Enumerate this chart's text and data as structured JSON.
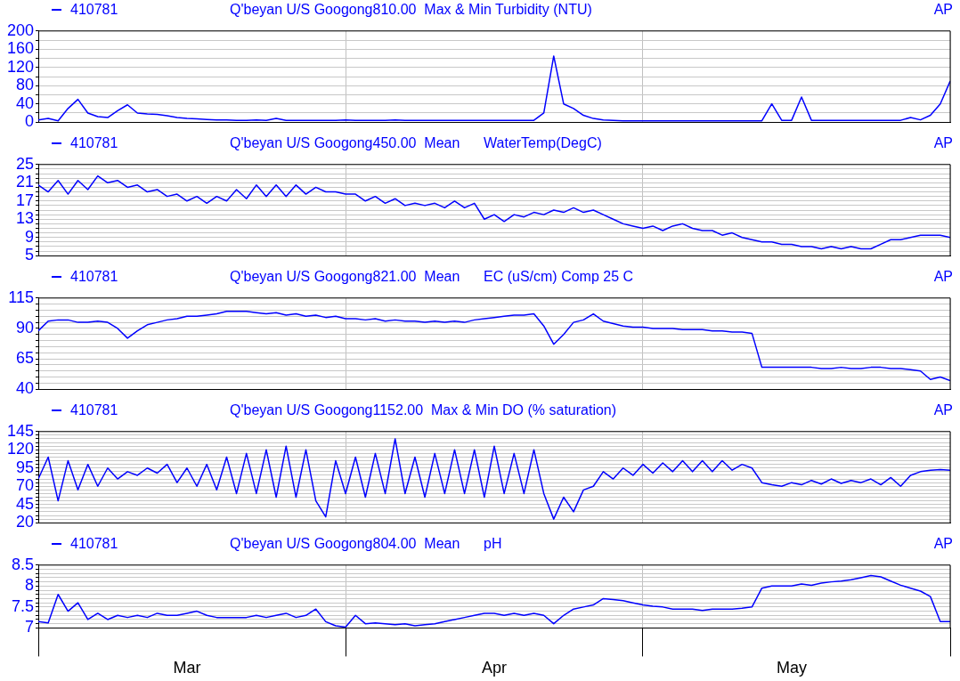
{
  "chart_data": [
    {
      "type": "line",
      "title": "Q'beyan U/S Googong810.00",
      "subtitle": "Max & Min Turbidity (NTU)",
      "annotations": [
        "AP"
      ],
      "legend": "top left",
      "grid": true,
      "tick_labels": "y",
      "x": [
        "--03-01",
        "--03-02",
        "--03-03",
        "--03-04",
        "--03-05",
        "--03-06",
        "--03-07",
        "--03-08",
        "--03-09",
        "--03-10",
        "--03-11",
        "--03-12",
        "--03-13",
        "--03-14",
        "--03-15",
        "--03-16",
        "--03-17",
        "--03-18",
        "--03-19",
        "--03-20",
        "--03-21",
        "--03-22",
        "--03-23",
        "--03-24",
        "--03-25",
        "--03-26",
        "--03-27",
        "--03-28",
        "--03-29",
        "--03-30",
        "--03-31",
        "--04-01",
        "--04-02",
        "--04-03",
        "--04-04",
        "--04-05",
        "--04-06",
        "--04-07",
        "--04-08",
        "--04-09",
        "--04-10",
        "--04-11",
        "--04-12",
        "--04-13",
        "--04-14",
        "--04-15",
        "--04-16",
        "--04-17",
        "--04-18",
        "--04-19",
        "--04-20",
        "--04-21",
        "--04-22",
        "--04-23",
        "--04-24",
        "--04-25",
        "--04-26",
        "--04-27",
        "--04-28",
        "--04-29",
        "--04-30",
        "--05-01",
        "--05-02",
        "--05-03",
        "--05-04",
        "--05-05",
        "--05-06",
        "--05-07",
        "--05-08",
        "--05-09",
        "--05-10",
        "--05-11",
        "--05-12",
        "--05-13",
        "--05-14",
        "--05-15",
        "--05-16",
        "--05-17",
        "--05-18",
        "--05-19",
        "--05-20",
        "--05-21",
        "--05-22",
        "--05-23",
        "--05-24",
        "--05-25",
        "--05-26",
        "--05-27",
        "--05-28",
        "--05-29",
        "--05-30",
        "--05-31",
        "--06-01"
      ],
      "xlim": [
        "--03-01",
        "--06-01"
      ],
      "xticks": [
        {
          "value": "--03-01",
          "label": null
        },
        {
          "value": "--03-16",
          "label": "Mar"
        },
        {
          "value": "--04-01",
          "label": null
        },
        {
          "value": "--04-16",
          "label": "Apr"
        },
        {
          "value": "--05-01",
          "label": null
        },
        {
          "value": "--05-16",
          "label": "May"
        },
        {
          "value": "--06-01",
          "label": null
        }
      ],
      "ylim": [
        0,
        200
      ],
      "yticks": [
        0,
        {
          "value": 20,
          "label": null
        },
        40,
        {
          "value": 60,
          "label": null
        },
        80,
        {
          "value": 100,
          "label": null
        },
        120,
        {
          "value": 140,
          "label": null
        },
        160,
        {
          "value": 180,
          "label": null
        },
        200
      ],
      "series": [
        {
          "name": "410781",
          "color": "#0000ff",
          "values": [
            5,
            8,
            3,
            30,
            50,
            20,
            12,
            10,
            25,
            38,
            20,
            18,
            17,
            14,
            10,
            8,
            7,
            6,
            5,
            5,
            4,
            4,
            5,
            4,
            8,
            4,
            4,
            4,
            4,
            4,
            4,
            5,
            4,
            4,
            4,
            4,
            5,
            4,
            4,
            4,
            4,
            4,
            4,
            4,
            4,
            4,
            4,
            4,
            4,
            4,
            4,
            20,
            145,
            40,
            30,
            15,
            8,
            5,
            4,
            3,
            3,
            3,
            3,
            3,
            3,
            3,
            3,
            3,
            3,
            3,
            3,
            3,
            3,
            3,
            40,
            4,
            4,
            55,
            4,
            4,
            4,
            4,
            4,
            4,
            4,
            4,
            4,
            4,
            10,
            5,
            15,
            40,
            90
          ]
        }
      ]
    },
    {
      "type": "line",
      "title": "Q'beyan U/S Googong450.00",
      "subtitle": "Mean      WaterTemp(DegC)",
      "annotations": [
        "AP"
      ],
      "legend": "top left",
      "grid": true,
      "tick_labels": "y",
      "x": [
        "--03-01",
        "--03-02",
        "--03-03",
        "--03-04",
        "--03-05",
        "--03-06",
        "--03-07",
        "--03-08",
        "--03-09",
        "--03-10",
        "--03-11",
        "--03-12",
        "--03-13",
        "--03-14",
        "--03-15",
        "--03-16",
        "--03-17",
        "--03-18",
        "--03-19",
        "--03-20",
        "--03-21",
        "--03-22",
        "--03-23",
        "--03-24",
        "--03-25",
        "--03-26",
        "--03-27",
        "--03-28",
        "--03-29",
        "--03-30",
        "--03-31",
        "--04-01",
        "--04-02",
        "--04-03",
        "--04-04",
        "--04-05",
        "--04-06",
        "--04-07",
        "--04-08",
        "--04-09",
        "--04-10",
        "--04-11",
        "--04-12",
        "--04-13",
        "--04-14",
        "--04-15",
        "--04-16",
        "--04-17",
        "--04-18",
        "--04-19",
        "--04-20",
        "--04-21",
        "--04-22",
        "--04-23",
        "--04-24",
        "--04-25",
        "--04-26",
        "--04-27",
        "--04-28",
        "--04-29",
        "--04-30",
        "--05-01",
        "--05-02",
        "--05-03",
        "--05-04",
        "--05-05",
        "--05-06",
        "--05-07",
        "--05-08",
        "--05-09",
        "--05-10",
        "--05-11",
        "--05-12",
        "--05-13",
        "--05-14",
        "--05-15",
        "--05-16",
        "--05-17",
        "--05-18",
        "--05-19",
        "--05-20",
        "--05-21",
        "--05-22",
        "--05-23",
        "--05-24",
        "--05-25",
        "--05-26",
        "--05-27",
        "--05-28",
        "--05-29",
        "--05-30",
        "--05-31",
        "--06-01"
      ],
      "xlim": [
        "--03-01",
        "--06-01"
      ],
      "xticks": [
        {
          "value": "--03-01",
          "label": null
        },
        {
          "value": "--03-16",
          "label": "Mar"
        },
        {
          "value": "--04-01",
          "label": null
        },
        {
          "value": "--04-16",
          "label": "Apr"
        },
        {
          "value": "--05-01",
          "label": null
        },
        {
          "value": "--05-16",
          "label": "May"
        },
        {
          "value": "--06-01",
          "label": null
        }
      ],
      "ylim": [
        5,
        25
      ],
      "yticks": [
        5,
        {
          "value": 6,
          "label": null
        },
        {
          "value": 7,
          "label": null
        },
        {
          "value": 8,
          "label": null
        },
        9,
        {
          "value": 10,
          "label": null
        },
        {
          "value": 11,
          "label": null
        },
        {
          "value": 12,
          "label": null
        },
        13,
        {
          "value": 14,
          "label": null
        },
        {
          "value": 15,
          "label": null
        },
        {
          "value": 16,
          "label": null
        },
        17,
        {
          "value": 18,
          "label": null
        },
        {
          "value": 19,
          "label": null
        },
        {
          "value": 20,
          "label": null
        },
        21,
        {
          "value": 22,
          "label": null
        },
        {
          "value": 23,
          "label": null
        },
        {
          "value": 24,
          "label": null
        },
        25
      ],
      "series": [
        {
          "name": "410781",
          "color": "#0000ff",
          "values": [
            20.5,
            19,
            21.5,
            18.5,
            21.5,
            19.5,
            22.5,
            21,
            21.5,
            20,
            20.5,
            19,
            19.5,
            18,
            18.5,
            17,
            18,
            16.5,
            18,
            17,
            19.5,
            17.5,
            20.5,
            18,
            20.5,
            18,
            20.5,
            18.5,
            20,
            19,
            19,
            18.5,
            18.5,
            17,
            18,
            16.5,
            17.5,
            16,
            16.5,
            16,
            16.5,
            15.5,
            17,
            15.5,
            16.5,
            13,
            14,
            12.5,
            14,
            13.5,
            14.5,
            14,
            15,
            14.5,
            15.5,
            14.5,
            15,
            14,
            13,
            12,
            11.5,
            11,
            11.5,
            10.5,
            11.5,
            12,
            11,
            10.5,
            10.5,
            9.5,
            10,
            9,
            8.5,
            8,
            8,
            7.5,
            7.5,
            7,
            7,
            6.5,
            7,
            6.5,
            7,
            6.5,
            6.5,
            7.5,
            8.5,
            8.5,
            9,
            9.5,
            9.5,
            9.5,
            9
          ]
        }
      ]
    },
    {
      "type": "line",
      "title": "Q'beyan U/S Googong821.00",
      "subtitle": "Mean      EC (uS/cm) Comp 25 C",
      "annotations": [
        "AP"
      ],
      "legend": "top left",
      "grid": true,
      "tick_labels": "y",
      "x": [
        "--03-01",
        "--03-02",
        "--03-03",
        "--03-04",
        "--03-05",
        "--03-06",
        "--03-07",
        "--03-08",
        "--03-09",
        "--03-10",
        "--03-11",
        "--03-12",
        "--03-13",
        "--03-14",
        "--03-15",
        "--03-16",
        "--03-17",
        "--03-18",
        "--03-19",
        "--03-20",
        "--03-21",
        "--03-22",
        "--03-23",
        "--03-24",
        "--03-25",
        "--03-26",
        "--03-27",
        "--03-28",
        "--03-29",
        "--03-30",
        "--03-31",
        "--04-01",
        "--04-02",
        "--04-03",
        "--04-04",
        "--04-05",
        "--04-06",
        "--04-07",
        "--04-08",
        "--04-09",
        "--04-10",
        "--04-11",
        "--04-12",
        "--04-13",
        "--04-14",
        "--04-15",
        "--04-16",
        "--04-17",
        "--04-18",
        "--04-19",
        "--04-20",
        "--04-21",
        "--04-22",
        "--04-23",
        "--04-24",
        "--04-25",
        "--04-26",
        "--04-27",
        "--04-28",
        "--04-29",
        "--04-30",
        "--05-01",
        "--05-02",
        "--05-03",
        "--05-04",
        "--05-05",
        "--05-06",
        "--05-07",
        "--05-08",
        "--05-09",
        "--05-10",
        "--05-11",
        "--05-12",
        "--05-13",
        "--05-14",
        "--05-15",
        "--05-16",
        "--05-17",
        "--05-18",
        "--05-19",
        "--05-20",
        "--05-21",
        "--05-22",
        "--05-23",
        "--05-24",
        "--05-25",
        "--05-26",
        "--05-27",
        "--05-28",
        "--05-29",
        "--05-30",
        "--05-31",
        "--06-01"
      ],
      "xlim": [
        "--03-01",
        "--06-01"
      ],
      "xticks": [
        {
          "value": "--03-01",
          "label": null
        },
        {
          "value": "--03-16",
          "label": "Mar"
        },
        {
          "value": "--04-01",
          "label": null
        },
        {
          "value": "--04-16",
          "label": "Apr"
        },
        {
          "value": "--05-01",
          "label": null
        },
        {
          "value": "--05-16",
          "label": "May"
        },
        {
          "value": "--06-01",
          "label": null
        }
      ],
      "ylim": [
        40,
        115
      ],
      "yticks": [
        40,
        {
          "value": 45,
          "label": null
        },
        {
          "value": 50,
          "label": null
        },
        {
          "value": 55,
          "label": null
        },
        {
          "value": 60,
          "label": null
        },
        65,
        {
          "value": 70,
          "label": null
        },
        {
          "value": 75,
          "label": null
        },
        {
          "value": 80,
          "label": null
        },
        {
          "value": 85,
          "label": null
        },
        90,
        {
          "value": 95,
          "label": null
        },
        {
          "value": 100,
          "label": null
        },
        {
          "value": 105,
          "label": null
        },
        {
          "value": 110,
          "label": null
        },
        115
      ],
      "series": [
        {
          "name": "410781",
          "color": "#0000ff",
          "values": [
            88,
            96,
            97,
            97,
            95,
            95,
            96,
            95,
            90,
            82,
            88,
            93,
            95,
            97,
            98,
            100,
            100,
            101,
            102,
            104,
            104,
            104,
            103,
            102,
            103,
            101,
            102,
            100,
            101,
            99,
            100,
            98,
            98,
            97,
            98,
            96,
            97,
            96,
            96,
            95,
            96,
            95,
            96,
            95,
            97,
            98,
            99,
            100,
            101,
            101,
            102,
            92,
            77,
            85,
            95,
            97,
            102,
            96,
            94,
            92,
            91,
            91,
            90,
            90,
            90,
            89,
            89,
            89,
            88,
            88,
            87,
            87,
            86,
            58,
            58,
            58,
            58,
            58,
            58,
            57,
            57,
            58,
            57,
            57,
            58,
            58,
            57,
            57,
            56,
            55,
            48,
            50,
            47
          ]
        }
      ]
    },
    {
      "type": "line",
      "title": "Q'beyan U/S Googong1152.00",
      "subtitle": "Max & Min DO (% saturation)",
      "annotations": [
        "AP"
      ],
      "legend": "top left",
      "grid": true,
      "tick_labels": "y",
      "x": [
        "--03-01",
        "--03-02",
        "--03-03",
        "--03-04",
        "--03-05",
        "--03-06",
        "--03-07",
        "--03-08",
        "--03-09",
        "--03-10",
        "--03-11",
        "--03-12",
        "--03-13",
        "--03-14",
        "--03-15",
        "--03-16",
        "--03-17",
        "--03-18",
        "--03-19",
        "--03-20",
        "--03-21",
        "--03-22",
        "--03-23",
        "--03-24",
        "--03-25",
        "--03-26",
        "--03-27",
        "--03-28",
        "--03-29",
        "--03-30",
        "--03-31",
        "--04-01",
        "--04-02",
        "--04-03",
        "--04-04",
        "--04-05",
        "--04-06",
        "--04-07",
        "--04-08",
        "--04-09",
        "--04-10",
        "--04-11",
        "--04-12",
        "--04-13",
        "--04-14",
        "--04-15",
        "--04-16",
        "--04-17",
        "--04-18",
        "--04-19",
        "--04-20",
        "--04-21",
        "--04-22",
        "--04-23",
        "--04-24",
        "--04-25",
        "--04-26",
        "--04-27",
        "--04-28",
        "--04-29",
        "--04-30",
        "--05-01",
        "--05-02",
        "--05-03",
        "--05-04",
        "--05-05",
        "--05-06",
        "--05-07",
        "--05-08",
        "--05-09",
        "--05-10",
        "--05-11",
        "--05-12",
        "--05-13",
        "--05-14",
        "--05-15",
        "--05-16",
        "--05-17",
        "--05-18",
        "--05-19",
        "--05-20",
        "--05-21",
        "--05-22",
        "--05-23",
        "--05-24",
        "--05-25",
        "--05-26",
        "--05-27",
        "--05-28",
        "--05-29",
        "--05-30",
        "--05-31",
        "--06-01"
      ],
      "xlim": [
        "--03-01",
        "--06-01"
      ],
      "xticks": [
        {
          "value": "--03-01",
          "label": null
        },
        {
          "value": "--03-16",
          "label": "Mar"
        },
        {
          "value": "--04-01",
          "label": null
        },
        {
          "value": "--04-16",
          "label": "Apr"
        },
        {
          "value": "--05-01",
          "label": null
        },
        {
          "value": "--05-16",
          "label": "May"
        },
        {
          "value": "--06-01",
          "label": null
        }
      ],
      "ylim": [
        20,
        145
      ],
      "yticks": [
        20,
        {
          "value": 25,
          "label": null
        },
        {
          "value": 30,
          "label": null
        },
        {
          "value": 35,
          "label": null
        },
        {
          "value": 40,
          "label": null
        },
        45,
        {
          "value": 50,
          "label": null
        },
        {
          "value": 55,
          "label": null
        },
        {
          "value": 60,
          "label": null
        },
        {
          "value": 65,
          "label": null
        },
        70,
        {
          "value": 75,
          "label": null
        },
        {
          "value": 80,
          "label": null
        },
        {
          "value": 85,
          "label": null
        },
        {
          "value": 90,
          "label": null
        },
        95,
        {
          "value": 100,
          "label": null
        },
        {
          "value": 105,
          "label": null
        },
        {
          "value": 110,
          "label": null
        },
        {
          "value": 115,
          "label": null
        },
        120,
        {
          "value": 125,
          "label": null
        },
        {
          "value": 130,
          "label": null
        },
        {
          "value": 135,
          "label": null
        },
        {
          "value": 140,
          "label": null
        },
        145
      ],
      "series": [
        {
          "name": "410781",
          "color": "#0000ff",
          "values": [
            80,
            110,
            50,
            105,
            65,
            100,
            70,
            95,
            80,
            90,
            85,
            95,
            88,
            100,
            75,
            95,
            70,
            100,
            65,
            110,
            60,
            115,
            60,
            120,
            55,
            125,
            55,
            120,
            50,
            28,
            105,
            60,
            110,
            55,
            115,
            60,
            135,
            60,
            110,
            55,
            115,
            60,
            120,
            60,
            120,
            55,
            125,
            60,
            115,
            60,
            120,
            60,
            25,
            55,
            35,
            65,
            70,
            90,
            80,
            95,
            85,
            100,
            88,
            102,
            90,
            105,
            90,
            105,
            90,
            105,
            92,
            100,
            95,
            75,
            72,
            70,
            75,
            72,
            78,
            73,
            80,
            74,
            78,
            75,
            80,
            72,
            82,
            70,
            85,
            90,
            92,
            93,
            92
          ]
        }
      ]
    },
    {
      "type": "line",
      "title": "Q'beyan U/S Googong804.00",
      "subtitle": "Mean      pH",
      "annotations": [
        "AP"
      ],
      "legend": "top left",
      "grid": true,
      "x": [
        "--03-01",
        "--03-02",
        "--03-03",
        "--03-04",
        "--03-05",
        "--03-06",
        "--03-07",
        "--03-08",
        "--03-09",
        "--03-10",
        "--03-11",
        "--03-12",
        "--03-13",
        "--03-14",
        "--03-15",
        "--03-16",
        "--03-17",
        "--03-18",
        "--03-19",
        "--03-20",
        "--03-21",
        "--03-22",
        "--03-23",
        "--03-24",
        "--03-25",
        "--03-26",
        "--03-27",
        "--03-28",
        "--03-29",
        "--03-30",
        "--03-31",
        "--04-01",
        "--04-02",
        "--04-03",
        "--04-04",
        "--04-05",
        "--04-06",
        "--04-07",
        "--04-08",
        "--04-09",
        "--04-10",
        "--04-11",
        "--04-12",
        "--04-13",
        "--04-14",
        "--04-15",
        "--04-16",
        "--04-17",
        "--04-18",
        "--04-19",
        "--04-20",
        "--04-21",
        "--04-22",
        "--04-23",
        "--04-24",
        "--04-25",
        "--04-26",
        "--04-27",
        "--04-28",
        "--04-29",
        "--04-30",
        "--05-01",
        "--05-02",
        "--05-03",
        "--05-04",
        "--05-05",
        "--05-06",
        "--05-07",
        "--05-08",
        "--05-09",
        "--05-10",
        "--05-11",
        "--05-12",
        "--05-13",
        "--05-14",
        "--05-15",
        "--05-16",
        "--05-17",
        "--05-18",
        "--05-19",
        "--05-20",
        "--05-21",
        "--05-22",
        "--05-23",
        "--05-24",
        "--05-25",
        "--05-26",
        "--05-27",
        "--05-28",
        "--05-29",
        "--05-30",
        "--05-31",
        "--06-01"
      ],
      "xlim": [
        "--03-01",
        "--06-01"
      ],
      "xticks": [
        {
          "value": "--03-01",
          "label": null
        },
        {
          "value": "--03-16",
          "label": "Mar"
        },
        {
          "value": "--04-01",
          "label": null
        },
        {
          "value": "--04-16",
          "label": "Apr"
        },
        {
          "value": "--05-01",
          "label": null
        },
        {
          "value": "--05-16",
          "label": "May"
        },
        {
          "value": "--06-01",
          "label": null
        }
      ],
      "ylim": [
        7,
        8.5
      ],
      "yticks": [
        7,
        {
          "value": 7.1,
          "label": null
        },
        {
          "value": 7.2,
          "label": null
        },
        {
          "value": 7.3,
          "label": null
        },
        {
          "value": 7.4,
          "label": null
        },
        7.5,
        {
          "value": 7.6,
          "label": null
        },
        {
          "value": 7.7,
          "label": null
        },
        {
          "value": 7.8,
          "label": null
        },
        {
          "value": 7.9,
          "label": null
        },
        8,
        {
          "value": 8.1,
          "label": null
        },
        {
          "value": 8.2,
          "label": null
        },
        {
          "value": 8.3,
          "label": null
        },
        {
          "value": 8.4,
          "label": null
        },
        8.5
      ],
      "series": [
        {
          "name": "410781",
          "color": "#0000ff",
          "values": [
            7.15,
            7.12,
            7.8,
            7.4,
            7.6,
            7.2,
            7.35,
            7.2,
            7.3,
            7.25,
            7.3,
            7.25,
            7.35,
            7.3,
            7.3,
            7.35,
            7.4,
            7.3,
            7.25,
            7.25,
            7.25,
            7.25,
            7.3,
            7.25,
            7.3,
            7.35,
            7.25,
            7.3,
            7.45,
            7.15,
            7.05,
            7.02,
            7.3,
            7.1,
            7.12,
            7.1,
            7.08,
            7.1,
            7.05,
            7.08,
            7.1,
            7.15,
            7.2,
            7.25,
            7.3,
            7.35,
            7.35,
            7.3,
            7.35,
            7.3,
            7.35,
            7.3,
            7.1,
            7.3,
            7.45,
            7.5,
            7.55,
            7.7,
            7.68,
            7.65,
            7.6,
            7.55,
            7.52,
            7.5,
            7.45,
            7.45,
            7.45,
            7.42,
            7.45,
            7.45,
            7.45,
            7.47,
            7.5,
            7.95,
            8,
            8,
            8,
            8.05,
            8.02,
            8.07,
            8.1,
            8.12,
            8.15,
            8.2,
            8.25,
            8.22,
            8.12,
            8.02,
            7.95,
            7.88,
            7.75,
            7.15,
            7.15
          ]
        }
      ]
    }
  ]
}
